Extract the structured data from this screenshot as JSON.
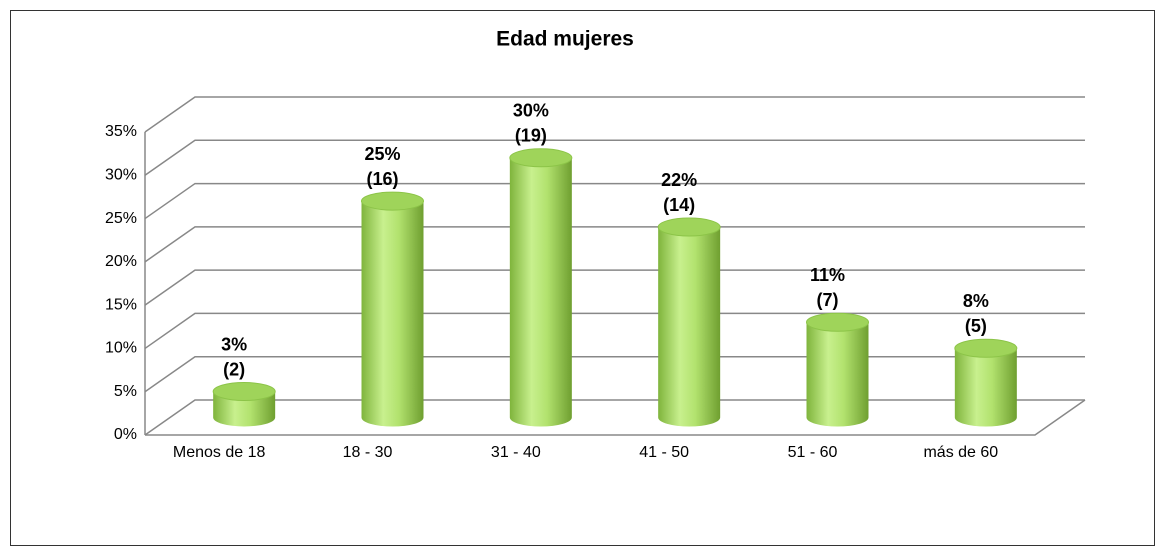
{
  "chart_data": {
    "type": "bar3d",
    "title": "Edad mujeres",
    "categories": [
      "Menos de 18",
      "18 - 30",
      "31 - 40",
      "41 - 50",
      "51 - 60",
      "más de 60"
    ],
    "values": [
      3,
      25,
      30,
      22,
      11,
      8
    ],
    "value_labels": [
      "3%",
      "25%",
      "30%",
      "22%",
      "11%",
      "8%"
    ],
    "count_labels": [
      "(2)",
      "(16)",
      "(19)",
      "(14)",
      "(7)",
      "(5)"
    ],
    "color": "#9fd45a",
    "ylim": [
      0,
      35
    ],
    "yticks": [
      {
        "value": 0,
        "label": "0%"
      },
      {
        "value": 5,
        "label": "5%"
      },
      {
        "value": 10,
        "label": "10%"
      },
      {
        "value": 15,
        "label": "15%"
      },
      {
        "value": 20,
        "label": "20%"
      },
      {
        "value": 25,
        "label": "25%"
      },
      {
        "value": 30,
        "label": "30%"
      },
      {
        "value": 35,
        "label": "35%"
      }
    ],
    "grid": true
  }
}
